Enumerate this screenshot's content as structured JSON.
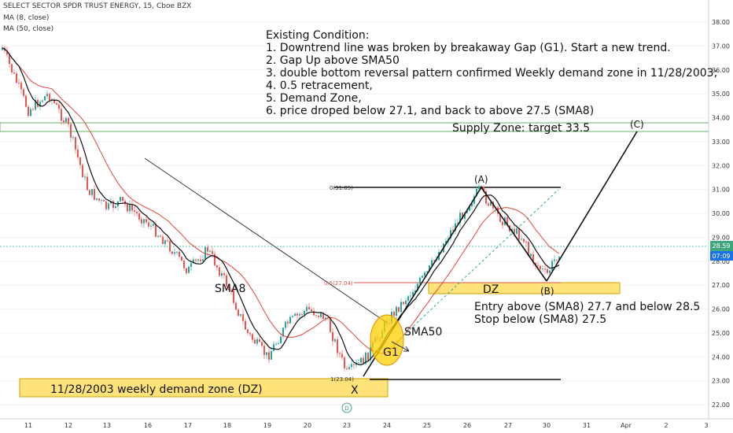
{
  "header": {
    "symbol_line": "SELECT SECTOR SPDR TRUST ENERGY, 15, Cboe BZX",
    "ma8": "MA (8, close)",
    "ma50": "MA (50, close)"
  },
  "notes": {
    "lines": [
      "Existing Condition:",
      "1. Downtrend line was broken by breakaway Gap (G1). Start a new trend.",
      "2. Gap Up above SMA50",
      "3. double bottom reversal pattern confirmed Weekly demand zone in 11/28/2003;",
      "4. 0.5 retracement,",
      "5. Demand Zone,",
      "6. price droped below 27.1, and back to above 27.5 (SMA8)"
    ],
    "entry": "Entry above  (SMA8) 27.7 and below 28.5",
    "stop": "Stop below (SMA8) 27.5"
  },
  "labels": {
    "supply": "Supply Zone:  target 33.5",
    "weekly_dz": "11/28/2003 weekly demand zone (DZ)",
    "dz": "DZ",
    "sma8": "SMA8",
    "sma50": "SMA50",
    "g1": "G1",
    "A": "(A)",
    "B": "(B)",
    "C": "(C)",
    "X": "X",
    "D": "D",
    "fib0": "0(31.05)",
    "fib05": "0.5(27.04)",
    "fib1": "1(23.04)"
  },
  "chart_data": {
    "type": "line",
    "title": "SELECT SECTOR SPDR TRUST ENERGY, 15, Cboe BZX",
    "x_ticks": [
      "11",
      "12",
      "13",
      "16",
      "17",
      "18",
      "19",
      "20",
      "23",
      "24",
      "25",
      "26",
      "27",
      "30",
      "31",
      "Apr",
      "2",
      "3"
    ],
    "y_ticks": [
      22,
      23,
      24,
      25,
      26,
      27,
      28,
      29,
      30,
      31,
      32,
      33,
      34,
      35,
      36,
      37,
      38
    ],
    "ylim": [
      21.75,
      38.6
    ],
    "last_price": "28.59",
    "time_tag": "07:09",
    "price_path": [
      {
        "x": "11",
        "y": 34.3
      },
      {
        "x": "11.5",
        "y": 35.0
      },
      {
        "x": "12",
        "y": 33.6
      },
      {
        "x": "12.5",
        "y": 31.0
      },
      {
        "x": "13",
        "y": 30.2
      },
      {
        "x": "14",
        "y": 30.5
      },
      {
        "x": "16",
        "y": 29.6
      },
      {
        "x": "16.5",
        "y": 28.7
      },
      {
        "x": "17",
        "y": 27.6
      },
      {
        "x": "17.5",
        "y": 28.5
      },
      {
        "x": "18",
        "y": 27.0
      },
      {
        "x": "18.5",
        "y": 25.0
      },
      {
        "x": "19",
        "y": 24.0
      },
      {
        "x": "19.5",
        "y": 25.4
      },
      {
        "x": "20",
        "y": 26.0
      },
      {
        "x": "20.5",
        "y": 25.6
      },
      {
        "x": "21",
        "y": 26.2
      },
      {
        "x": "23",
        "y": 23.3
      },
      {
        "x": "23.5",
        "y": 24.0
      },
      {
        "x": "24",
        "y": 25.5
      },
      {
        "x": "24.5",
        "y": 26.5
      },
      {
        "x": "25",
        "y": 27.5
      },
      {
        "x": "25.5",
        "y": 29.0
      },
      {
        "x": "26",
        "y": 30.3
      },
      {
        "x": "26.3",
        "y": 31.0
      },
      {
        "x": "26.7",
        "y": 30.0
      },
      {
        "x": "27",
        "y": 29.5
      },
      {
        "x": "27.5",
        "y": 28.8
      },
      {
        "x": "28",
        "y": 28.6
      },
      {
        "x": "30",
        "y": 27.4
      },
      {
        "x": "30.3",
        "y": 28.4
      }
    ],
    "sma8_line": "follows price (black)",
    "sma50_line": "red moving average",
    "levels": {
      "fib_0": 31.05,
      "fib_0_5": 27.04,
      "fib_1": 23.04,
      "supply_low": 33.4,
      "supply_high": 33.8,
      "target": 33.5
    },
    "zones": [
      {
        "name": "11/28/2003 weekly demand zone (DZ)",
        "low": 22.3,
        "high": 22.9
      },
      {
        "name": "DZ",
        "low": 26.8,
        "high": 27.1
      }
    ],
    "colors": {
      "sma50": "#e0443a",
      "supply": "#6ab06a",
      "zone": "#ffe27a",
      "fib05": "#d9534f",
      "price_tag": "#3fa57a",
      "time_tag": "#1a73e8",
      "last_line": "#26a69a"
    }
  }
}
